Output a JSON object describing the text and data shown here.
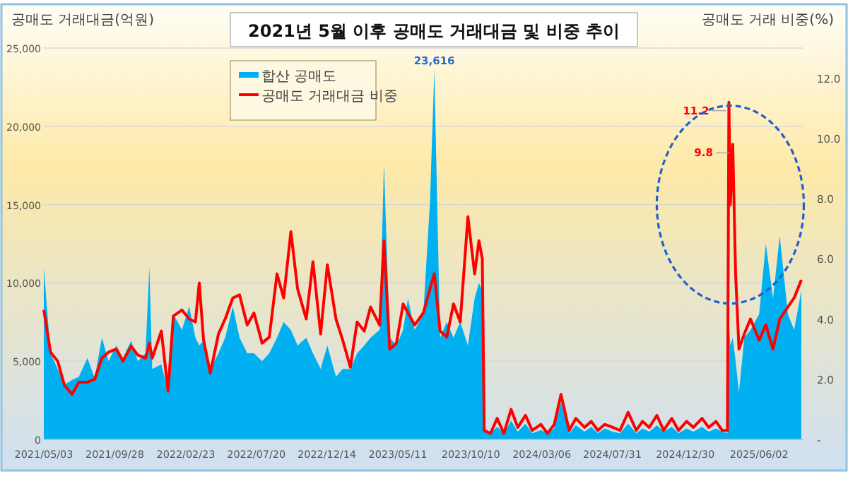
{
  "chart_data": {
    "type": "area",
    "title": "2021년 5월 이후 공매도 거래대금 및 비중 추이",
    "ylabel": "공매도 거래대금(억원)",
    "y2label": "공매도 거래 비중(%)",
    "x": [
      "2021-05-03",
      "2021-05-17",
      "2021-06-01",
      "2021-06-15",
      "2021-07-01",
      "2021-07-15",
      "2021-08-02",
      "2021-08-17",
      "2021-09-01",
      "2021-09-15",
      "2021-10-01",
      "2021-10-15",
      "2021-11-01",
      "2021-11-15",
      "2021-12-01",
      "2021-12-09",
      "2021-12-15",
      "2022-01-03",
      "2022-01-17",
      "2022-01-28",
      "2022-02-15",
      "2022-03-02",
      "2022-03-15",
      "2022-03-23",
      "2022-04-01",
      "2022-04-15",
      "2022-05-02",
      "2022-05-16",
      "2022-06-01",
      "2022-06-15",
      "2022-07-01",
      "2022-07-15",
      "2022-08-01",
      "2022-08-16",
      "2022-09-01",
      "2022-09-15",
      "2022-09-30",
      "2022-10-14",
      "2022-11-01",
      "2022-11-15",
      "2022-12-01",
      "2022-12-15",
      "2023-01-02",
      "2023-01-16",
      "2023-02-01",
      "2023-02-15",
      "2023-03-02",
      "2023-03-15",
      "2023-04-03",
      "2023-04-12",
      "2023-04-24",
      "2023-05-08",
      "2023-05-22",
      "2023-06-01",
      "2023-06-15",
      "2023-07-03",
      "2023-07-17",
      "2023-07-26",
      "2023-08-07",
      "2023-08-21",
      "2023-09-04",
      "2023-09-18",
      "2023-10-04",
      "2023-10-18",
      "2023-10-27",
      "2023-11-03",
      "2023-11-07",
      "2023-11-20",
      "2023-12-04",
      "2023-12-18",
      "2024-01-02",
      "2024-01-16",
      "2024-02-01",
      "2024-02-15",
      "2024-03-04",
      "2024-03-18",
      "2024-04-01",
      "2024-04-15",
      "2024-05-02",
      "2024-05-16",
      "2024-06-03",
      "2024-06-17",
      "2024-07-01",
      "2024-07-15",
      "2024-08-01",
      "2024-08-16",
      "2024-09-02",
      "2024-09-19",
      "2024-10-02",
      "2024-10-16",
      "2024-11-01",
      "2024-11-15",
      "2024-12-02",
      "2024-12-16",
      "2025-01-02",
      "2025-01-16",
      "2025-02-03",
      "2025-02-17",
      "2025-03-04",
      "2025-03-17",
      "2025-03-28",
      "2025-03-31",
      "2025-04-03",
      "2025-04-08",
      "2025-04-14",
      "2025-04-21",
      "2025-05-02",
      "2025-05-15",
      "2025-06-02",
      "2025-06-16",
      "2025-07-01",
      "2025-07-15",
      "2025-08-01",
      "2025-08-14",
      "2025-08-29"
    ],
    "series": [
      {
        "name": "합산 공매도",
        "color": "#00b0f0",
        "values": [
          11000,
          5500,
          4500,
          3500,
          3800,
          4000,
          5200,
          3900,
          6500,
          5000,
          6000,
          5200,
          6300,
          5000,
          5500,
          11000,
          4500,
          4800,
          3000,
          8000,
          7000,
          8500,
          6500,
          6000,
          6300,
          4500,
          5500,
          6500,
          8500,
          6500,
          5500,
          5500,
          5000,
          5500,
          6500,
          7500,
          7000,
          6000,
          6500,
          5500,
          4500,
          6000,
          4000,
          4500,
          4500,
          5500,
          6000,
          6500,
          7000,
          17600,
          6500,
          6000,
          7000,
          9000,
          7000,
          8000,
          15200,
          23616,
          6500,
          7500,
          6500,
          7500,
          6000,
          9000,
          10000,
          9500,
          500,
          400,
          800,
          400,
          1200,
          500,
          1000,
          400,
          600,
          400,
          700,
          2400,
          400,
          900,
          500,
          800,
          400,
          700,
          500,
          400,
          1000,
          400,
          700,
          500,
          900,
          500,
          800,
          400,
          700,
          500,
          800,
          500,
          700,
          500,
          400,
          7500,
          6000,
          6500,
          5000,
          3000,
          6500,
          7000,
          8000,
          12500,
          9000,
          13000,
          8000,
          7000,
          9500
        ],
        "value_labels": [
          null,
          null,
          null,
          null,
          null,
          null,
          null,
          null,
          null,
          null,
          null,
          null,
          null,
          null,
          null,
          null,
          null,
          null,
          null,
          null,
          null,
          null,
          null,
          null,
          null,
          null,
          null,
          null,
          null,
          null,
          null,
          null,
          null,
          null,
          null,
          null,
          null,
          null,
          null,
          null,
          null,
          null,
          null,
          null,
          null,
          null,
          null,
          null,
          null,
          null,
          null,
          null,
          null,
          null,
          null,
          null,
          null,
          "23,616",
          null,
          null,
          null,
          null,
          null,
          null,
          null,
          null,
          null,
          null,
          null,
          null,
          null,
          null,
          null,
          null,
          null,
          null,
          null,
          null,
          null,
          null,
          null,
          null,
          null,
          null,
          null,
          null,
          null,
          null,
          null,
          null,
          null,
          null,
          null,
          null,
          null,
          null,
          null,
          null,
          null,
          null,
          null,
          null,
          null,
          null,
          null,
          null,
          null,
          null,
          null,
          null,
          null,
          null,
          null,
          null,
          null
        ]
      },
      {
        "name": "공매도 거래대금 비중",
        "type": "line",
        "axis": "y2",
        "color": "#ff0000",
        "values": [
          4.3,
          2.9,
          2.6,
          1.8,
          1.5,
          1.9,
          1.9,
          2.0,
          2.7,
          2.9,
          3.0,
          2.6,
          3.1,
          2.8,
          2.7,
          3.2,
          2.7,
          3.6,
          1.6,
          4.1,
          4.3,
          4.0,
          3.9,
          5.2,
          3.3,
          2.2,
          3.5,
          4.0,
          4.7,
          4.8,
          3.8,
          4.2,
          3.2,
          3.4,
          5.5,
          4.7,
          6.9,
          5.0,
          4.0,
          5.9,
          3.5,
          5.8,
          4.0,
          3.3,
          2.4,
          3.9,
          3.6,
          4.4,
          3.8,
          6.6,
          3.0,
          3.2,
          4.5,
          4.2,
          3.8,
          4.2,
          5.0,
          5.5,
          3.6,
          3.4,
          4.5,
          3.9,
          7.4,
          5.5,
          6.6,
          6.0,
          0.3,
          0.2,
          0.7,
          0.2,
          1.0,
          0.4,
          0.8,
          0.3,
          0.5,
          0.2,
          0.5,
          1.5,
          0.3,
          0.7,
          0.4,
          0.6,
          0.3,
          0.5,
          0.4,
          0.3,
          0.9,
          0.3,
          0.6,
          0.4,
          0.8,
          0.3,
          0.7,
          0.3,
          0.6,
          0.4,
          0.7,
          0.4,
          0.6,
          0.3,
          0.3,
          11.2,
          7.8,
          9.8,
          5.5,
          3.0,
          3.5,
          4.0,
          3.3,
          3.8,
          3.0,
          4.0,
          4.4,
          4.7,
          5.3
        ],
        "value_labels": [
          null,
          null,
          null,
          null,
          null,
          null,
          null,
          null,
          null,
          null,
          null,
          null,
          null,
          null,
          null,
          null,
          null,
          null,
          null,
          null,
          null,
          null,
          null,
          null,
          null,
          null,
          null,
          null,
          null,
          null,
          null,
          null,
          null,
          null,
          null,
          null,
          null,
          null,
          null,
          null,
          null,
          null,
          null,
          null,
          null,
          null,
          null,
          null,
          null,
          null,
          null,
          null,
          null,
          null,
          null,
          null,
          null,
          null,
          null,
          null,
          null,
          null,
          null,
          null,
          null,
          null,
          null,
          null,
          null,
          null,
          null,
          null,
          null,
          null,
          null,
          null,
          null,
          null,
          null,
          null,
          null,
          null,
          null,
          null,
          null,
          null,
          null,
          null,
          null,
          null,
          null,
          null,
          null,
          null,
          null,
          null,
          null,
          null,
          null,
          null,
          null,
          "11.2",
          null,
          "9.8",
          null,
          null,
          null,
          null,
          null,
          null,
          null,
          null,
          null,
          null,
          null
        ]
      }
    ],
    "xlim": [
      "2021-05-03",
      "2025-09-01"
    ],
    "xticks": [
      {
        "value": "2021-05-03",
        "label": "2021/05/03"
      },
      {
        "value": "2021-09-28",
        "label": "2021/09/28"
      },
      {
        "value": "2022-02-23",
        "label": "2022/02/23"
      },
      {
        "value": "2022-07-20",
        "label": "2022/07/20"
      },
      {
        "value": "2022-12-14",
        "label": "2022/12/14"
      },
      {
        "value": "2023-05-11",
        "label": "2023/05/11"
      },
      {
        "value": "2023-10-10",
        "label": "2023/10/10"
      },
      {
        "value": "2024-03-06",
        "label": "2024/03/06"
      },
      {
        "value": "2024-07-31",
        "label": "2024/07/31"
      },
      {
        "value": "2024-12-30",
        "label": "2024/12/30"
      },
      {
        "value": "2025-06-02",
        "label": "2025/06/02"
      }
    ],
    "ylim": [
      0,
      25000
    ],
    "yticks": [
      0,
      {
        "value": 5000,
        "label": "5,000"
      },
      {
        "value": 10000,
        "label": "10,000"
      },
      {
        "value": 15000,
        "label": "15,000"
      },
      {
        "value": 20000,
        "label": "20,000"
      },
      {
        "value": 25000,
        "label": "25,000"
      }
    ],
    "y2lim": [
      0,
      13
    ],
    "y2ticks": [
      {
        "value": 0,
        "label": "-"
      },
      {
        "value": 2,
        "label": "2.0"
      },
      {
        "value": 4,
        "label": "4.0"
      },
      {
        "value": 6,
        "label": "6.0"
      },
      {
        "value": 8,
        "label": "8.0"
      },
      {
        "value": 10,
        "label": "10.0"
      },
      {
        "value": 12,
        "label": "12.0"
      }
    ],
    "grid": "y",
    "legend": "top left"
  }
}
